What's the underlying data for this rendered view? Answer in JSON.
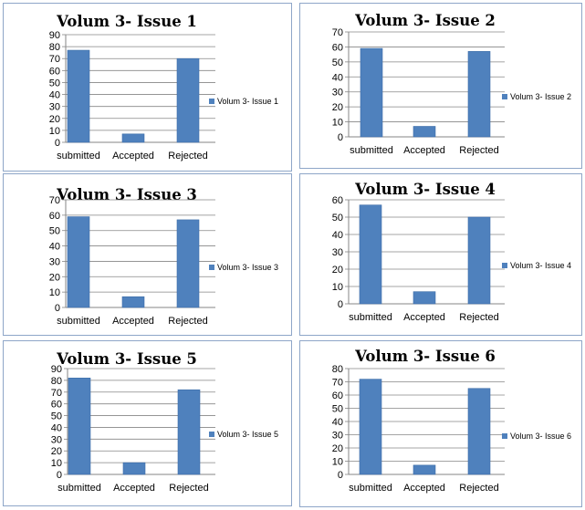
{
  "colors": {
    "bar": "#4f81bd",
    "bar_edge": "#3d6da8",
    "grid": "#868686",
    "axis": "#868686",
    "panel_border": "#8ea6c8"
  },
  "chart_data": [
    {
      "type": "bar",
      "title": "Volum 3- Issue 1",
      "categories": [
        "submitted",
        "Accepted",
        "Rejected"
      ],
      "series": [
        {
          "name": "Volum 3- Issue 1",
          "values": [
            77,
            7,
            70
          ]
        }
      ],
      "ylim": [
        0,
        90
      ],
      "ytick_step": 10,
      "legend_position": "right",
      "grid": true
    },
    {
      "type": "bar",
      "title": "Volum 3- Issue 2",
      "categories": [
        "submitted",
        "Accepted",
        "Rejected"
      ],
      "series": [
        {
          "name": "Volum 3- Issue 2",
          "values": [
            59,
            7,
            57
          ]
        }
      ],
      "ylim": [
        0,
        70
      ],
      "ytick_step": 10,
      "legend_position": "right",
      "grid": true
    },
    {
      "type": "bar",
      "title": "Volum 3- Issue 3",
      "categories": [
        "submitted",
        "Accepted",
        "Rejected"
      ],
      "series": [
        {
          "name": "Volum 3- Issue 3",
          "values": [
            59,
            7,
            57
          ]
        }
      ],
      "ylim": [
        0,
        70
      ],
      "ytick_step": 10,
      "legend_position": "right",
      "grid": true
    },
    {
      "type": "bar",
      "title": "Volum 3- Issue 4",
      "categories": [
        "submitted",
        "Accepted",
        "Rejected"
      ],
      "series": [
        {
          "name": "Volum 3- Issue 4",
          "values": [
            57,
            7,
            50
          ]
        }
      ],
      "ylim": [
        0,
        60
      ],
      "ytick_step": 10,
      "legend_position": "right",
      "grid": true
    },
    {
      "type": "bar",
      "title": "Volum 3- Issue 5",
      "categories": [
        "submitted",
        "Accepted",
        "Rejected"
      ],
      "series": [
        {
          "name": "Volum 3- Issue 5",
          "values": [
            82,
            10,
            72
          ]
        }
      ],
      "ylim": [
        0,
        90
      ],
      "ytick_step": 10,
      "legend_position": "right",
      "grid": true
    },
    {
      "type": "bar",
      "title": "Volum 3- Issue 6",
      "categories": [
        "submitted",
        "Accepted",
        "Rejected"
      ],
      "series": [
        {
          "name": "Volum 3- Issue 6",
          "values": [
            72,
            7,
            65
          ]
        }
      ],
      "ylim": [
        0,
        80
      ],
      "ytick_step": 10,
      "legend_position": "right",
      "grid": true
    }
  ]
}
